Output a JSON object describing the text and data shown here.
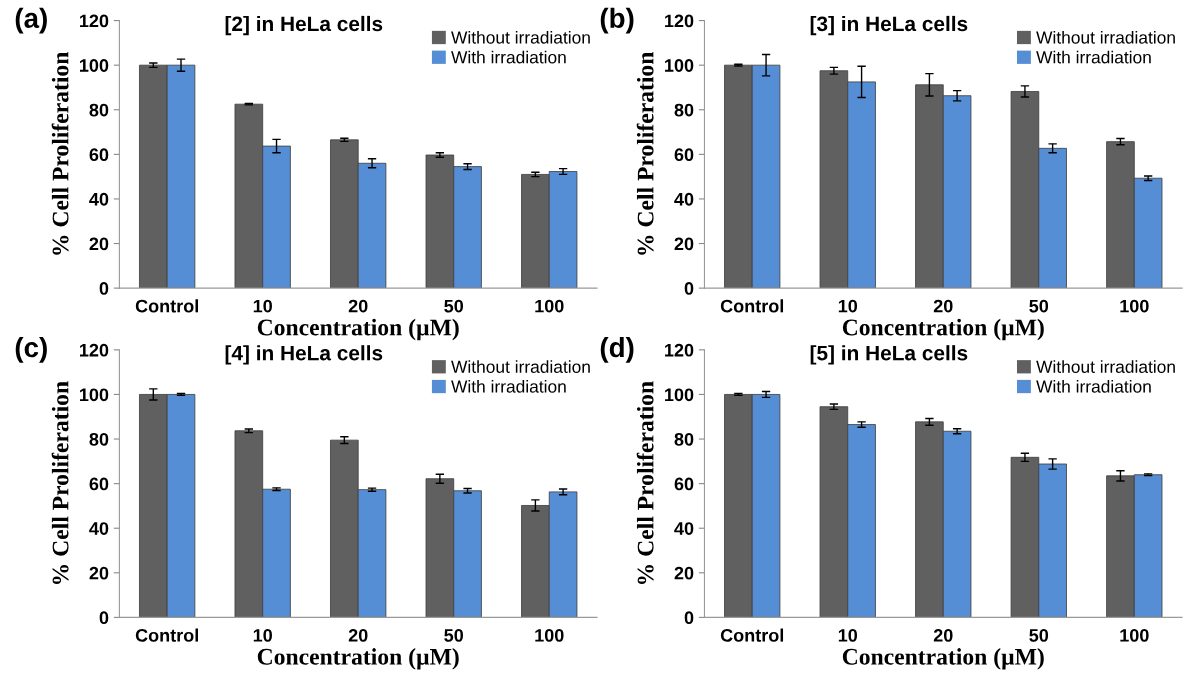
{
  "chart_data": [
    {
      "type": "bar",
      "title": "[2] in HeLa cells",
      "xlabel": "Concentration (µM)",
      "ylabel": "% Cell Proliferation",
      "annotations": [
        "(a)"
      ],
      "categories": [
        "Control",
        "10",
        "20",
        "50",
        "100"
      ],
      "ylim": [
        0,
        120
      ],
      "yticks": [
        0,
        20,
        40,
        60,
        80,
        100,
        120
      ],
      "legend": "top right",
      "grid": false,
      "series": [
        {
          "name": "Without irradiation",
          "color": "#606060",
          "values": [
            100,
            82.5,
            66.5,
            59.7,
            51
          ],
          "errors": [
            1,
            0.3,
            0.7,
            1,
            1
          ]
        },
        {
          "name": "With irradiation",
          "color": "#558ed5",
          "values": [
            100,
            63.7,
            56,
            54.5,
            52.3
          ],
          "errors": [
            2.7,
            3,
            2,
            1.3,
            1.3
          ]
        }
      ]
    },
    {
      "type": "bar",
      "title": "[3] in HeLa cells",
      "xlabel": "Concentration (µM)",
      "ylabel": "% Cell Proliferation",
      "annotations": [
        "(b)"
      ],
      "categories": [
        "Control",
        "10",
        "20",
        "50",
        "100"
      ],
      "ylim": [
        0,
        120
      ],
      "yticks": [
        0,
        20,
        40,
        60,
        80,
        100,
        120
      ],
      "legend": "top right",
      "grid": false,
      "series": [
        {
          "name": "Without irradiation",
          "color": "#606060",
          "values": [
            100,
            97.5,
            91.2,
            88.2,
            65.7
          ],
          "errors": [
            0.4,
            1.5,
            5,
            2.5,
            1.4
          ]
        },
        {
          "name": "With irradiation",
          "color": "#558ed5",
          "values": [
            100,
            92.5,
            86.3,
            62.7,
            49.3
          ],
          "errors": [
            4.8,
            7,
            2.3,
            2,
            1
          ]
        }
      ]
    },
    {
      "type": "bar",
      "title": "[4] in HeLa cells",
      "xlabel": "Concentration (µM)",
      "ylabel": "% Cell Proliferation",
      "annotations": [
        "(c)"
      ],
      "categories": [
        "Control",
        "10",
        "20",
        "50",
        "100"
      ],
      "ylim": [
        0,
        120
      ],
      "yticks": [
        0,
        20,
        40,
        60,
        80,
        100,
        120
      ],
      "legend": "top right",
      "grid": false,
      "series": [
        {
          "name": "Without irradiation",
          "color": "#606060",
          "values": [
            100,
            83.7,
            79.5,
            62.2,
            50.2
          ],
          "errors": [
            2.5,
            0.8,
            1.5,
            2,
            2.5
          ]
        },
        {
          "name": "With irradiation",
          "color": "#558ed5",
          "values": [
            100,
            57.5,
            57.3,
            56.8,
            56.3
          ],
          "errors": [
            0.4,
            0.6,
            0.7,
            1,
            1.3
          ]
        }
      ]
    },
    {
      "type": "bar",
      "title": "[5] in HeLa cells",
      "xlabel": "Concentration (µM)",
      "ylabel": "% Cell Proliferation",
      "annotations": [
        "(d)"
      ],
      "categories": [
        "Control",
        "10",
        "20",
        "50",
        "100"
      ],
      "ylim": [
        0,
        120
      ],
      "yticks": [
        0,
        20,
        40,
        60,
        80,
        100,
        120
      ],
      "legend": "top right",
      "grid": false,
      "series": [
        {
          "name": "Without irradiation",
          "color": "#606060",
          "values": [
            100,
            94.5,
            87.7,
            71.8,
            63.5
          ],
          "errors": [
            0.4,
            1.2,
            1.5,
            1.8,
            2.3
          ]
        },
        {
          "name": "With irradiation",
          "color": "#558ed5",
          "values": [
            100,
            86.5,
            83.5,
            68.8,
            64
          ],
          "errors": [
            1.3,
            1.2,
            1.1,
            2.3,
            0.4
          ]
        }
      ]
    }
  ]
}
